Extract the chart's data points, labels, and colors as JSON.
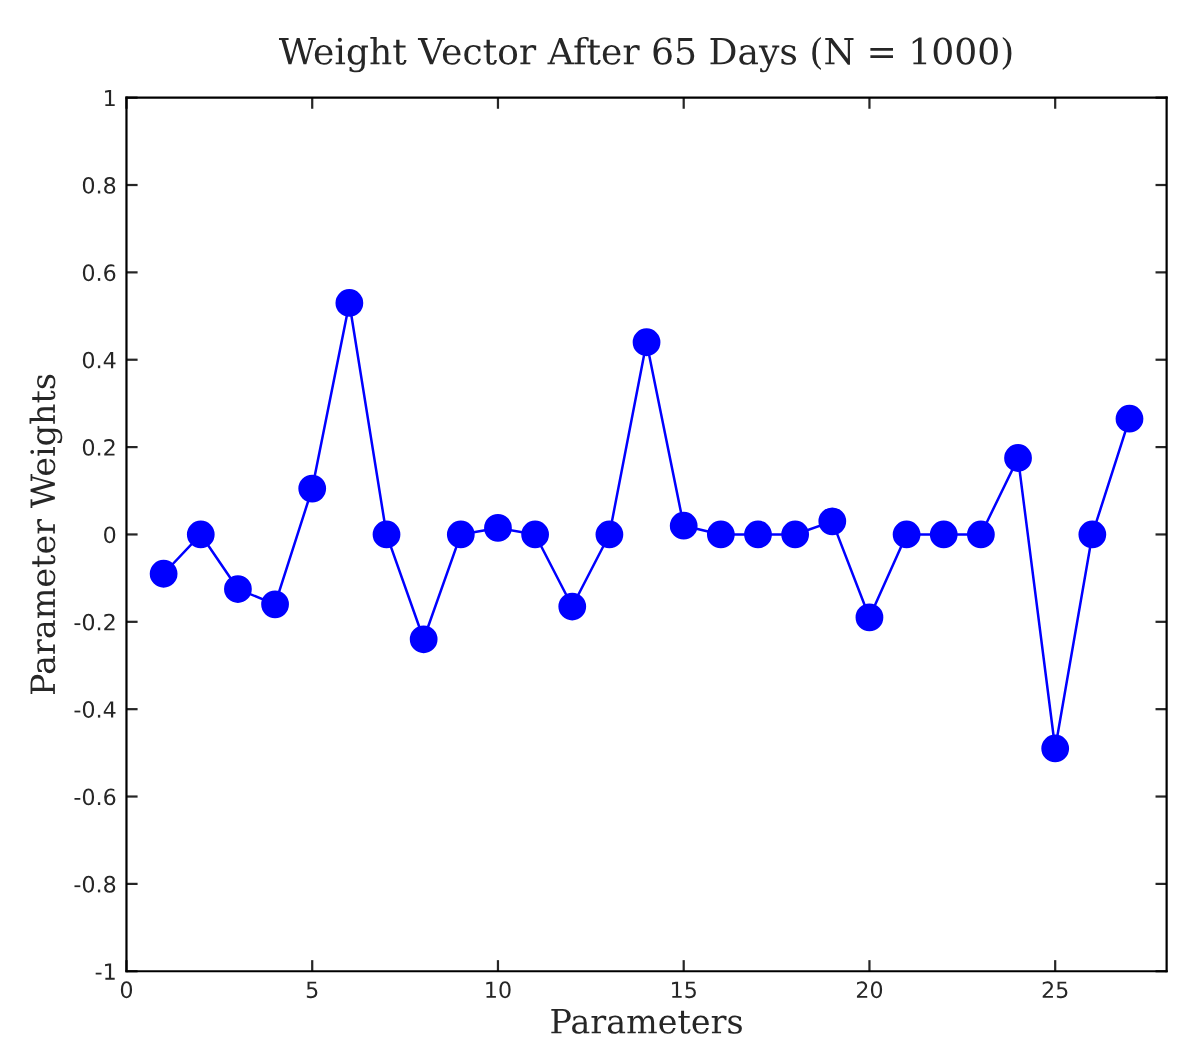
{
  "chart_data": {
    "type": "line",
    "title": "Weight Vector After 65 Days (N = 1000)",
    "xlabel": "Parameters",
    "ylabel": "Parameter Weights",
    "x": [
      1,
      2,
      3,
      4,
      5,
      6,
      7,
      8,
      9,
      10,
      11,
      12,
      13,
      14,
      15,
      16,
      17,
      18,
      19,
      20,
      21,
      22,
      23,
      24,
      25,
      26,
      27
    ],
    "series": [
      {
        "color": "#0000ff",
        "values": [
          -0.09,
          0,
          -0.125,
          -0.16,
          0.105,
          0.53,
          0,
          -0.24,
          0,
          0.015,
          0,
          -0.165,
          0,
          0.44,
          0.02,
          0,
          0,
          0,
          0.03,
          -0.19,
          0,
          0,
          0,
          0.175,
          -0.49,
          0,
          0.265
        ]
      }
    ],
    "xlim": [
      0,
      28
    ],
    "xticks": [
      0,
      5,
      10,
      15,
      20,
      25
    ],
    "ylim": [
      -1,
      1
    ],
    "yticks": [
      -1,
      -0.8,
      -0.6,
      -0.4,
      -0.2,
      0,
      0.2,
      0.4,
      0.6,
      0.8,
      1
    ],
    "marker": "circle",
    "line_style": "solid",
    "grid": false,
    "legend": false
  }
}
